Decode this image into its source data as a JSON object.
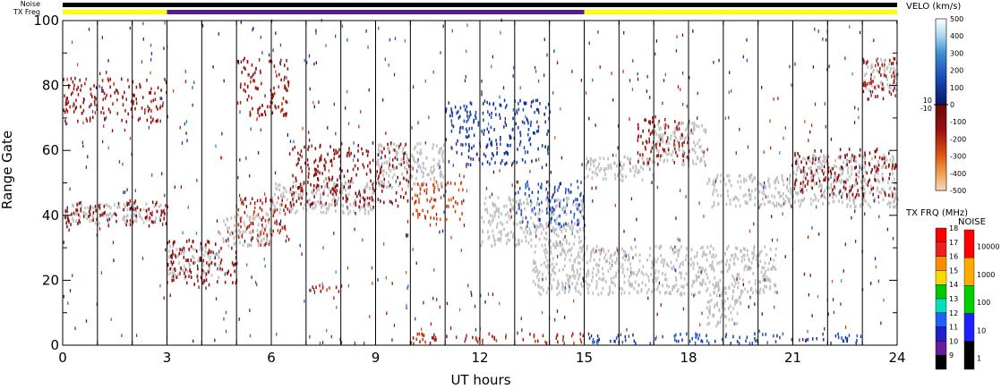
{
  "chart_data": {
    "type": "heatmap",
    "title": "",
    "xlabel": "UT hours",
    "ylabel": "Range Gate",
    "xlim": [
      0,
      24
    ],
    "ylim": [
      0,
      100
    ],
    "x_ticks": [
      0,
      3,
      6,
      9,
      12,
      15,
      18,
      21,
      24
    ],
    "y_ticks": [
      0,
      20,
      40,
      60,
      80,
      100
    ],
    "x_minor_step": 1,
    "y_minor_step": 10,
    "scan_boundary_hours": [
      1,
      2,
      3,
      4,
      5,
      6,
      7,
      8,
      9,
      10,
      11,
      12,
      13,
      14,
      15,
      16,
      17,
      18,
      19,
      20,
      21,
      22,
      23
    ],
    "status_bars": {
      "noise_label": "Noise",
      "txfreq_label": "TX Freq",
      "noise_segments": [
        {
          "start": 0,
          "end": 24,
          "color": "#000000"
        }
      ],
      "txfreq_segments": [
        {
          "start": 0,
          "end": 3,
          "color": "#ffff00"
        },
        {
          "start": 3,
          "end": 15,
          "color": "#5a1a8a"
        },
        {
          "start": 15,
          "end": 24,
          "color": "#ffff00"
        }
      ]
    },
    "ground_scatter_color": "#c0c0c0",
    "ground_scatter_bands": [
      {
        "x": [
          0,
          3
        ],
        "y": [
          37,
          43
        ]
      },
      {
        "x": [
          3,
          4.5
        ],
        "y": [
          20,
          30
        ]
      },
      {
        "x": [
          4.5,
          6
        ],
        "y": [
          30,
          40
        ]
      },
      {
        "x": [
          6,
          9
        ],
        "y": [
          40,
          50
        ]
      },
      {
        "x": [
          9,
          11
        ],
        "y": [
          48,
          62
        ]
      },
      {
        "x": [
          12,
          15
        ],
        "y": [
          30,
          45
        ]
      },
      {
        "x": [
          15,
          17
        ],
        "y": [
          50,
          58
        ]
      },
      {
        "x": [
          17,
          18.5
        ],
        "y": [
          55,
          68
        ]
      },
      {
        "x": [
          18.5,
          21
        ],
        "y": [
          42,
          52
        ]
      },
      {
        "x": [
          21,
          24
        ],
        "y": [
          42,
          58
        ]
      },
      {
        "x": [
          13.5,
          20.5
        ],
        "y": [
          15,
          30
        ]
      },
      {
        "x": [
          18.5,
          19.5
        ],
        "y": [
          5,
          18
        ]
      },
      {
        "x": [
          23,
          24
        ],
        "y": [
          78,
          88
        ]
      }
    ],
    "velocity_scatter_regions": [
      {
        "x": [
          0,
          3
        ],
        "y": [
          68,
          82
        ],
        "velocity": -150
      },
      {
        "x": [
          0,
          3
        ],
        "y": [
          36,
          44
        ],
        "velocity": -100
      },
      {
        "x": [
          3,
          5
        ],
        "y": [
          18,
          32
        ],
        "velocity": -100
      },
      {
        "x": [
          5,
          6.5
        ],
        "y": [
          30,
          45
        ],
        "velocity": -200
      },
      {
        "x": [
          5,
          6.5
        ],
        "y": [
          70,
          88
        ],
        "velocity": -150
      },
      {
        "x": [
          6.5,
          10
        ],
        "y": [
          42,
          62
        ],
        "velocity": -100
      },
      {
        "x": [
          10,
          11.5
        ],
        "y": [
          38,
          50
        ],
        "velocity": -250
      },
      {
        "x": [
          11,
          14
        ],
        "y": [
          55,
          75
        ],
        "velocity": 100
      },
      {
        "x": [
          13,
          15
        ],
        "y": [
          36,
          50
        ],
        "velocity": 150
      },
      {
        "x": [
          10,
          15
        ],
        "y": [
          0,
          3
        ],
        "velocity": -200
      },
      {
        "x": [
          15,
          23
        ],
        "y": [
          0,
          3
        ],
        "velocity": 150
      },
      {
        "x": [
          16.5,
          18
        ],
        "y": [
          55,
          70
        ],
        "velocity": -150
      },
      {
        "x": [
          21,
          24
        ],
        "y": [
          45,
          60
        ],
        "velocity": -100
      },
      {
        "x": [
          23,
          24
        ],
        "y": [
          75,
          88
        ],
        "velocity": -150
      },
      {
        "x": [
          7,
          8
        ],
        "y": [
          16,
          18
        ],
        "velocity": -200
      }
    ],
    "colorbars": [
      {
        "title": "VELO (km/s)",
        "range": [
          -500,
          500
        ],
        "ticks": [
          "500",
          "400",
          "300",
          "200",
          "100",
          "0",
          "-100",
          "-200",
          "-300",
          "-400",
          "-500"
        ],
        "threshold_labels": [
          "10",
          "-10"
        ],
        "stops": [
          {
            "value": 500,
            "color": "#ffffff"
          },
          {
            "value": 400,
            "color": "#a8d8f0"
          },
          {
            "value": 300,
            "color": "#3f8fd6"
          },
          {
            "value": 150,
            "color": "#1848b8"
          },
          {
            "value": 10,
            "color": "#0a1a6e"
          },
          {
            "value": -10,
            "color": "#6e0a0a"
          },
          {
            "value": -150,
            "color": "#9a1010"
          },
          {
            "value": -300,
            "color": "#e05a10"
          },
          {
            "value": -400,
            "color": "#f0a050"
          },
          {
            "value": -500,
            "color": "#f8d8b8"
          }
        ]
      },
      {
        "title": "TX FRQ (MHz)",
        "ticks": [
          "18",
          "17",
          "16",
          "15",
          "14",
          "13",
          "12",
          "11",
          "10",
          "9"
        ],
        "colors": [
          "#ff0000",
          "#e82020",
          "#ff8c00",
          "#ffd700",
          "#00c800",
          "#00e0c0",
          "#2060ff",
          "#2020c8",
          "#6a1a9a",
          "#000000"
        ]
      },
      {
        "title": "NOISE",
        "ticks": [
          "10000",
          "1000",
          "100",
          "10",
          "1"
        ],
        "colors": [
          "#ff0000",
          "#ffaa00",
          "#00d000",
          "#2020ff",
          "#000000"
        ]
      }
    ]
  }
}
